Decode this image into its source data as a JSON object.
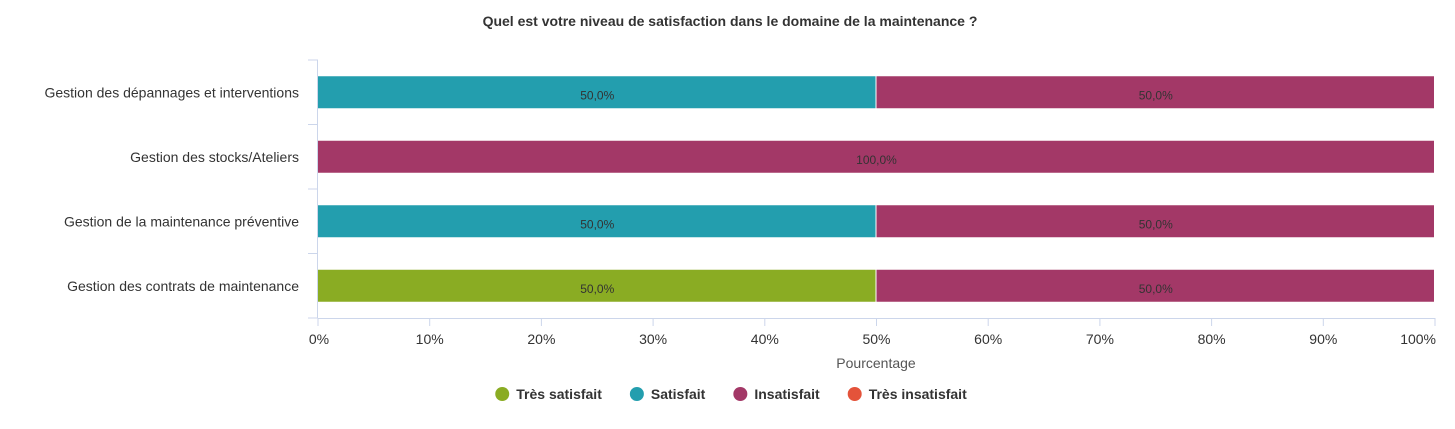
{
  "chart_data": {
    "type": "bar",
    "orientation": "horizontal",
    "stacking": "percent",
    "title": "Quel est votre niveau de satisfaction dans le domaine de la maintenance ?",
    "xlabel": "Pourcentage",
    "ylabel": "",
    "xlim": [
      0,
      100
    ],
    "ticks": [
      "0%",
      "10%",
      "20%",
      "30%",
      "40%",
      "50%",
      "60%",
      "70%",
      "80%",
      "90%",
      "100%"
    ],
    "grid": false,
    "legend_position": "bottom-center",
    "categories": [
      "Gestion des dépannages et interventions",
      "Gestion des stocks/Ateliers",
      "Gestion de la maintenance préventive",
      "Gestion des contrats de maintenance"
    ],
    "series": [
      {
        "name": "Très satisfait",
        "color": "#8aac23",
        "values": [
          0,
          0,
          0,
          50
        ]
      },
      {
        "name": "Satisfait",
        "color": "#239eae",
        "values": [
          50,
          0,
          50,
          0
        ]
      },
      {
        "name": "Insatisfait",
        "color": "#a33867",
        "values": [
          50,
          100,
          50,
          50
        ]
      },
      {
        "name": "Très insatisfait",
        "color": "#e4533a",
        "values": [
          0,
          0,
          0,
          0
        ]
      }
    ],
    "data_labels": [
      [
        "50,0%",
        "50,0%"
      ],
      [
        "100,0%"
      ],
      [
        "50,0%",
        "50,0%"
      ],
      [
        "50,0%",
        "50,0%"
      ]
    ]
  }
}
